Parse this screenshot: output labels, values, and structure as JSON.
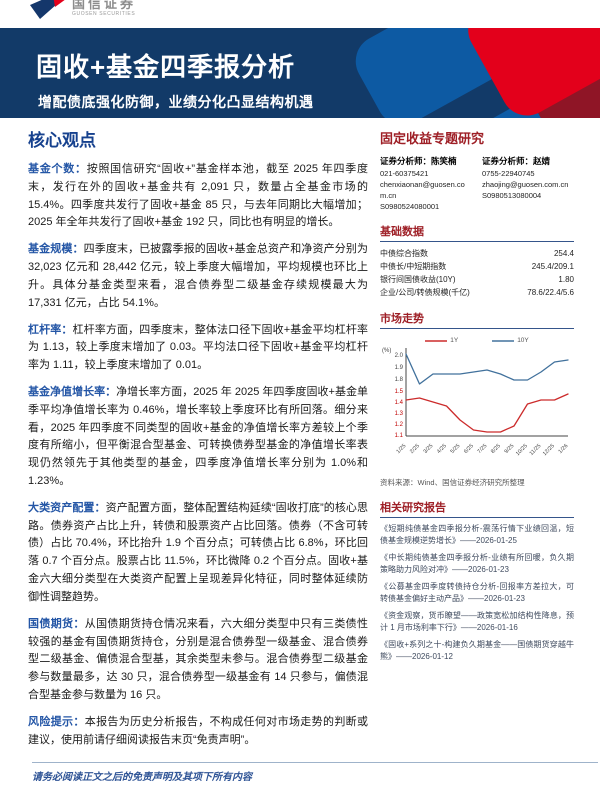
{
  "logo": {
    "name_cn": "国信证券",
    "name_en": "GUOSEN SECURITIES"
  },
  "banner": {
    "title": "固收+基金四季报分析",
    "subtitle": "增配债底强化防御，业绩分化凸显结构机遇",
    "bg_color": "#123a68",
    "accent_red": "#e3001b",
    "accent_blue": "#0d5aa3"
  },
  "core": {
    "heading": "核心观点",
    "paragraphs": [
      {
        "label": "基金个数：",
        "text": "按照国信研究“固收+”基金样本池，截至 2025 年四季度末，发行在外的固收+基金共有 2,091 只，数量占全基金市场的 15.4%。四季度共发行了固收+基金 85 只，与去年同期比大幅增加；2025 年全年共发行了固收+基金 192 只，同比也有明显的增长。"
      },
      {
        "label": "基金规模：",
        "text": "四季度末，已披露季报的固收+基金总资产和净资产分别为 32,023 亿元和 28,442 亿元，较上季度大幅增加，平均规模也环比上升。具体分基金类型来看，混合债券型二级基金存续规模最大为 17,331 亿元，占比 54.1%。"
      },
      {
        "label": "杠杆率：",
        "text": "杠杆率方面，四季度末，整体法口径下固收+基金平均杠杆率为 1.13，较上季度末增加了 0.03。平均法口径下固收+基金平均杠杆率为 1.11，较上季度末增加了 0.01。"
      },
      {
        "label": "基金净值增长率：",
        "text": "净增长率方面，2025 年 2025 年四季度固收+基金单季平均净值增长率为 0.46%，增长率较上季度环比有所回落。细分来看，2025 年四季度不同类型的固收+基金的净值增长率方差较上个季度有所缩小，但平衡混合型基金、可转换债券型基金的净值增长率表现仍然领先于其他类型的基金，四季度净值增长率分别为 1.0%和 1.23%。"
      },
      {
        "label": "大类资产配置：",
        "text": "资产配置方面，整体配置结构延续“固收打底”的核心思路。债券资产占比上升，转债和股票资产占比回落。债券（不含可转债）占比 70.4%，环比抬升 1.9 个百分点；可转债占比 6.8%，环比回落 0.7 个百分点。股票占比 11.5%，环比微降 0.2 个百分点。固收+基金六大细分类型在大类资产配置上呈现差异化特征，同时整体延续防御性调整趋势。"
      },
      {
        "label": "国债期货：",
        "text": "从国债期货持仓情况来看，六大细分类型中只有三类债性较强的基金有国债期货持仓，分别是混合债券型一级基金、混合债券型二级基金、偏债混合型基，其余类型未参与。混合债券型二级基金参与数量最多，达 30 只，混合债券型一级基金有 14 只参与，偏债混合型基金参与数量为 16 只。"
      },
      {
        "label": "风险提示：",
        "text": "本报告为历史分析报告，不构成任何对市场走势的判断或建议，使用前请仔细阅读报告末页“免责声明”。"
      }
    ]
  },
  "sidebar": {
    "report_type": "固定收益专题研究",
    "analysts": [
      {
        "role": "证券分析师：",
        "name": "陈笑楠",
        "phone": "021-60375421",
        "email": "chenxiaonan@guosen.com.cn",
        "license": "S0980524080001"
      },
      {
        "role": "证券分析师：",
        "name": "赵婧",
        "phone": "0755-22940745",
        "email": "zhaojing@guosen.com.cn",
        "license": "S0980513080004"
      }
    ],
    "base_data": {
      "heading": "基础数据",
      "rows": [
        {
          "label": "中债综合指数",
          "value": "254.4"
        },
        {
          "label": "中债长/中短期指数",
          "value": "245.4/209.1"
        },
        {
          "label": "银行间国债收益(10Y)",
          "value": "1.80"
        },
        {
          "label": "企业/公司/转债规模(千亿)",
          "value": "78.6/22.4/5.6"
        }
      ]
    },
    "market": {
      "heading": "市场走势",
      "source": "资料来源：Wind、国信证券经济研究所整理"
    },
    "related": {
      "heading": "相关研究报告",
      "items": [
        "《短期纯债基金四季报分析-震荡行情下业绩回温，短债基金规模逆势增长》——2026-01-25",
        "《中长期纯债基金四季报分析-业绩有所回暖，负久期策略助力风险对冲》——2026-01-23",
        "《公募基金四季度转债持仓分析-回报率方差拉大，可转债基金偏好主动产品》——2026-01-23",
        "《资金观察，货币瞭望——政策宽松加结构性降息，预计 1 月市场利率下行》——2026-01-16",
        "《固收+系列之十-构建负久期基金——国债期货穿越牛熊》——2026-01-12"
      ]
    }
  },
  "chart_data": {
    "type": "line",
    "title": "市场走势",
    "unit_label": "(%)",
    "x": [
      "1/25",
      "2/25",
      "3/25",
      "4/25",
      "5/25",
      "6/25",
      "7/25",
      "8/25",
      "9/25",
      "10/25",
      "11/25",
      "12/25",
      "1/26"
    ],
    "series": [
      {
        "name": "1Y",
        "color": "#cc2b2b",
        "axis": "bottom",
        "values": [
          1.43,
          1.44,
          1.42,
          1.4,
          1.33,
          1.28,
          1.27,
          1.27,
          1.3,
          1.41,
          1.43,
          1.43,
          1.46
        ]
      },
      {
        "name": "10Y",
        "color": "#41719c",
        "axis": "top",
        "values": [
          2.0,
          1.85,
          1.9,
          1.9,
          1.9,
          1.91,
          1.92,
          1.9,
          1.87,
          1.87,
          1.91,
          1.96,
          1.97
        ]
      }
    ],
    "y_ticks_top": [
      "2.0",
      "1.9",
      "1.8"
    ],
    "y_ticks_bottom": [
      "1.5",
      "1.4",
      "1.3",
      "1.2",
      "1.1"
    ],
    "y_range_top": [
      1.8,
      2.05
    ],
    "y_range_bottom": [
      1.1,
      1.5
    ],
    "legend_position": "top",
    "grid": false
  },
  "footer": {
    "disclaimer": "请务必阅读正文之后的免责声明及其项下所有内容"
  }
}
